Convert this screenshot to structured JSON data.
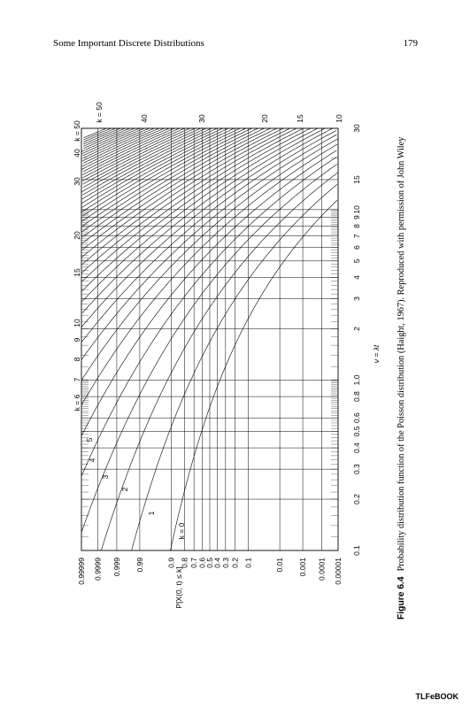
{
  "header": {
    "title": "Some Important Discrete Distributions",
    "page": "179"
  },
  "figure": {
    "y_axis_label": "P[X(0, t) ≤ k]",
    "x_axis_label": "ν = λt",
    "probability_ticks": [
      0.99999,
      0.9999,
      0.999,
      0.99,
      0.9,
      0.8,
      0.7,
      0.6,
      0.5,
      0.4,
      0.3,
      0.2,
      0.1,
      0.01,
      0.001,
      0.0001,
      1e-05
    ],
    "nu_ticks": [
      0.1,
      0.2,
      0.3,
      0.4,
      0.5,
      0.6,
      0.8,
      {
        "value": 1,
        "label": "1.0"
      },
      2,
      3,
      4,
      5,
      6,
      7,
      8,
      9,
      10,
      15,
      30
    ],
    "curve_labels_left": [
      "k = 0",
      "1",
      "2",
      "3",
      "4",
      "5"
    ],
    "curve_labels_top": [
      "k = 6",
      "7",
      "8",
      "9",
      "10",
      "15",
      "20",
      "30",
      "40",
      "k = 50"
    ],
    "curve_labels_right": [
      "k = 50",
      "40",
      "30",
      "20",
      "15",
      "10"
    ],
    "caption_label": "Figure 6.4",
    "caption": "Probability distribution function of the Poisson distribution (Haight, 1967). Reproduced with permission of John Wiley"
  },
  "footer": "TLFeBOOK"
}
